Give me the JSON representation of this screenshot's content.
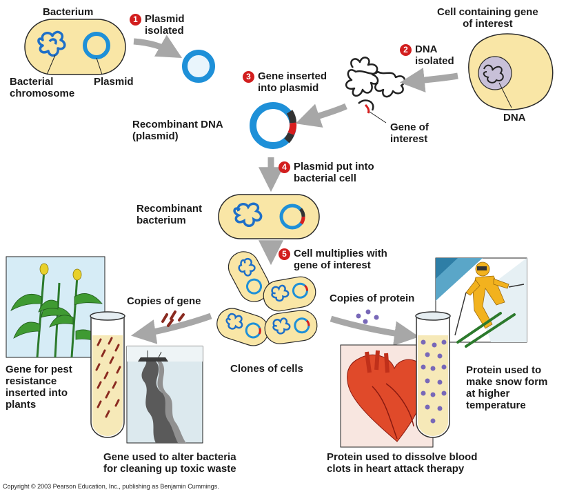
{
  "labels": {
    "bacterium": "Bacterium",
    "bacterial_chromosome": "Bacterial\nchromosome",
    "plasmid": "Plasmid",
    "cell_gene_interest": "Cell containing gene\nof interest",
    "dna": "DNA",
    "recombinant_dna": "Recombinant DNA\n(plasmid)",
    "gene_of_interest": "Gene of\ninterest",
    "recombinant_bacterium": "Recombinant\nbacterium",
    "copies_gene": "Copies of gene",
    "copies_protein": "Copies of protein",
    "clones": "Clones of cells",
    "pest_resistance": "Gene for pest\nresistance\ninserted into\nplants",
    "toxic_waste": "Gene used to alter bacteria\nfor cleaning up toxic waste",
    "snow": "Protein used to\nmake snow form\nat higher\ntemperature",
    "blood_clots": "Protein used to dissolve blood\nclots in heart attack therapy"
  },
  "steps": [
    {
      "number": "1",
      "text": "Plasmid\nisolated"
    },
    {
      "number": "2",
      "text": "DNA\nisolated"
    },
    {
      "number": "3",
      "text": "Gene inserted\ninto plasmid"
    },
    {
      "number": "4",
      "text": "Plasmid put into\nbacterial cell"
    },
    {
      "number": "5",
      "text": "Cell multiplies with\ngene of interest"
    }
  ],
  "copyright": "Copyright © 2003 Pearson Education, Inc., publishing as Benjamin Cummings.",
  "colors": {
    "cell_fill": "#f9e6a6",
    "cell_stroke": "#2a2a2a",
    "plasmid_blue": "#1e90d8",
    "chromosome_blue": "#1e6fc8",
    "gene_red": "#d81e1e",
    "arrow_gray": "#a7a7a7",
    "step_badge": "#d21e1e",
    "protein_purple": "#7868b8",
    "gene_copy_brown": "#8a2a20",
    "suit_yellow": "#f2b21e",
    "heart_red": "#e04a2a"
  }
}
